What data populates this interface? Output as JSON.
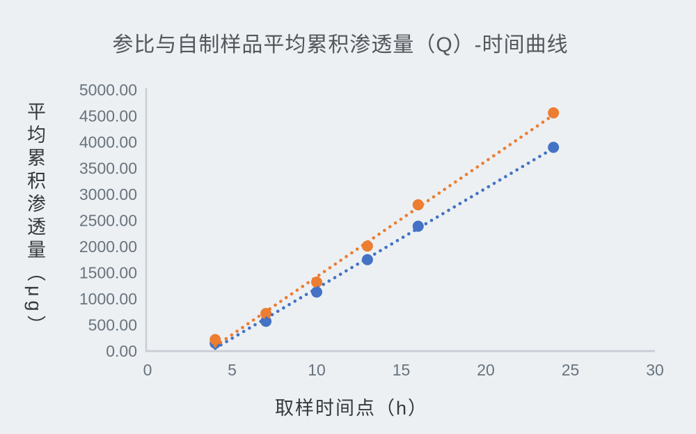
{
  "page": {
    "background": "#ECF0F3"
  },
  "chart_data": {
    "type": "scatter",
    "title": "参比与自制样品平均累积渗透量（Q）-时间曲线",
    "xlabel": "取样时间点（h）",
    "ylabel": "平均累积渗透量（μg）",
    "x": [
      4,
      7,
      10,
      13,
      16,
      24
    ],
    "series": [
      {
        "name": "series-blue",
        "color": "#4472C4",
        "values": [
          150,
          570,
          1130,
          1750,
          2390,
          3900
        ],
        "trendline": "linear-dotted"
      },
      {
        "name": "series-orange",
        "color": "#ED7D31",
        "values": [
          220,
          720,
          1320,
          2010,
          2800,
          4560
        ],
        "trendline": "linear-dotted"
      }
    ],
    "xlim": [
      0,
      30
    ],
    "ylim": [
      0,
      5000
    ],
    "x_ticks": [
      "0",
      "5",
      "10",
      "15",
      "20",
      "25",
      "30"
    ],
    "y_ticks": [
      "5000.00",
      "4500.00",
      "4000.00",
      "3500.00",
      "3000.00",
      "2500.00",
      "2000.00",
      "1500.00",
      "1000.00",
      "500.00",
      "0.00"
    ],
    "grid": false,
    "legend": "none",
    "marker_diameter_px": 16,
    "colors": {
      "axis_line": "#C8CDD3",
      "tick_label": "#69737D",
      "title": "#53575C",
      "axis_title": "#35393D"
    }
  }
}
